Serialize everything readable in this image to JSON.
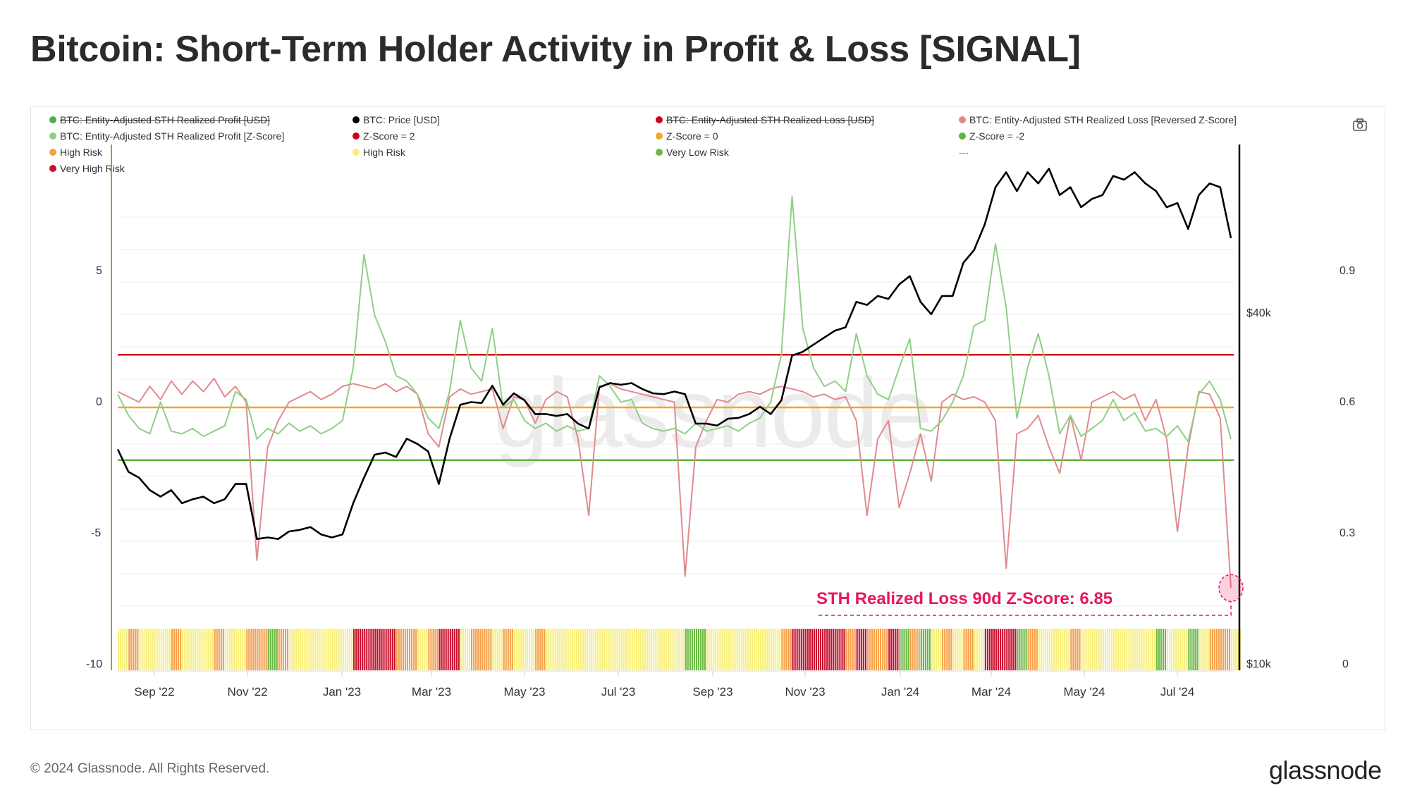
{
  "title": "Bitcoin: Short-Term Holder Activity in Profit & Loss [SIGNAL]",
  "legend": [
    {
      "label": "BTC: Entity-Adjusted STH Realized Profit [USD]",
      "color": "#4caf50",
      "disabled": true
    },
    {
      "label": "BTC: Price [USD]",
      "color": "#000000",
      "disabled": false
    },
    {
      "label": "BTC: Entity-Adjusted STH Realized Loss [USD]",
      "color": "#d0021b",
      "disabled": true
    },
    {
      "label": "BTC: Entity-Adjusted STH Realized Loss [Reversed Z-Score]",
      "color": "#e08a8f",
      "disabled": false
    },
    {
      "label": "BTC: Entity-Adjusted STH Realized Profit [Z-Score]",
      "color": "#8fcf86",
      "disabled": false
    },
    {
      "label": "Z-Score = 2",
      "color": "#d0021b",
      "disabled": false
    },
    {
      "label": "Z-Score = 0",
      "color": "#f5a623",
      "disabled": false
    },
    {
      "label": "Z-Score = -2",
      "color": "#5cb83c",
      "disabled": false
    },
    {
      "label": "High Risk",
      "color": "#f5a04a",
      "disabled": false
    },
    {
      "label": "High Risk",
      "color": "#f8ef7e",
      "disabled": false
    },
    {
      "label": "Very Low Risk",
      "color": "#6bb845",
      "disabled": false
    },
    {
      "label": "---",
      "color": "",
      "disabled": false
    },
    {
      "label": "Very High Risk",
      "color": "#c8102e",
      "disabled": false
    }
  ],
  "annotation": "STH Realized Loss 90d Z-Score: 6.85",
  "watermark": "glassnode",
  "footer": {
    "copyright": "© 2024 Glassnode. All Rights Reserved.",
    "logo": "glassnode"
  },
  "icons": {
    "screenshot": "camera-icon"
  },
  "colors": {
    "profit_z": "#8fcf86",
    "loss_z": "#e08a8f",
    "price": "#000000",
    "z2": "#d0021b",
    "z0": "#f5a623",
    "zm2": "#5cb83c",
    "annotation": "#e8175d"
  },
  "chart_data": {
    "type": "line",
    "title": "Bitcoin: Short-Term Holder Activity in Profit & Loss [SIGNAL]",
    "x_start": "2022-08-08",
    "step_days": 7,
    "x_ticks": [
      "Sep '22",
      "Nov '22",
      "Jan '23",
      "Mar '23",
      "May '23",
      "Jul '23",
      "Sep '23",
      "Nov '23",
      "Jan '24",
      "Mar '24",
      "May '24",
      "Jul '24"
    ],
    "y_left": {
      "ticks": [
        "5",
        "0",
        "-5",
        "-10"
      ],
      "range": [
        -10,
        9.5
      ]
    },
    "y_price": {
      "ticks": [
        "$40k",
        "$10k"
      ],
      "scale": "log"
    },
    "y_right": {
      "ticks": [
        "0.9",
        "0.6",
        "0.3",
        "0"
      ],
      "range": [
        0,
        1
      ]
    },
    "thresholds": [
      {
        "name": "Z-Score = 2",
        "value": 2
      },
      {
        "name": "Z-Score = 0",
        "value": 0
      },
      {
        "name": "Z-Score = -2",
        "value": -2
      }
    ],
    "series": [
      {
        "name": "BTC: Price [USD] (thousands)",
        "axis": "price",
        "values": [
          23.5,
          21.5,
          21,
          20,
          19.5,
          20,
          19,
          19.3,
          19.5,
          19,
          19.3,
          20.5,
          20.5,
          16.5,
          16.6,
          16.5,
          17,
          17.1,
          17.3,
          16.8,
          16.6,
          16.8,
          19,
          21,
          23,
          23.2,
          22.8,
          24.5,
          24,
          23.3,
          20.5,
          24.5,
          28,
          28.3,
          28.2,
          30.2,
          28,
          29.3,
          28.5,
          27,
          27,
          26.8,
          27,
          26,
          25.5,
          30,
          30.5,
          30.3,
          30.5,
          29.8,
          29.3,
          29.2,
          29.5,
          29.2,
          26,
          26,
          25.8,
          26.5,
          26.6,
          27,
          27.8,
          27,
          28.5,
          34,
          34.5,
          35.5,
          36.5,
          37.5,
          38,
          42,
          41.5,
          43,
          42.5,
          45,
          46.5,
          42,
          40,
          43,
          43,
          49,
          51.5,
          57,
          66,
          70,
          65,
          70,
          67,
          71,
          64,
          66,
          61,
          63,
          64,
          69,
          68,
          70,
          67,
          65,
          61,
          62,
          56,
          64,
          67,
          66,
          54
        ]
      },
      {
        "name": "BTC: Entity-Adjusted STH Realized Profit [Z-Score]",
        "axis": "z",
        "values": [
          0.5,
          -0.3,
          -0.8,
          -1,
          0.2,
          -0.9,
          -1,
          -0.8,
          -1.1,
          -0.9,
          -0.7,
          0.6,
          0.3,
          -1.2,
          -0.8,
          -1,
          -0.6,
          -0.9,
          -0.7,
          -1,
          -0.8,
          -0.5,
          1.5,
          5.8,
          3.5,
          2.5,
          1.2,
          1,
          0.5,
          -0.4,
          -0.8,
          0.6,
          3.3,
          1.5,
          1,
          3.0,
          0,
          0.3,
          -0.5,
          -0.8,
          -0.6,
          -0.9,
          -0.7,
          -0.9,
          -0.8,
          1.2,
          0.8,
          0.2,
          0.3,
          -0.6,
          -0.8,
          -0.9,
          -0.8,
          -1,
          -0.6,
          -0.9,
          -0.8,
          -0.7,
          -0.9,
          -0.6,
          -0.4,
          0.2,
          2.0,
          8.0,
          3.0,
          1.5,
          0.8,
          1.0,
          0.6,
          2.8,
          1.2,
          0.5,
          0.3,
          1.5,
          2.6,
          -0.8,
          -0.9,
          -0.5,
          0.2,
          1.2,
          3.1,
          3.3,
          6.2,
          3.8,
          -0.4,
          1.5,
          2.8,
          1.2,
          -1.0,
          -0.3,
          -1.1,
          -0.8,
          -0.5,
          0.3,
          -0.5,
          -0.2,
          -0.9,
          -0.8,
          -1.1,
          -0.7,
          -1.3,
          0.5,
          1.0,
          0.3,
          -1.2
        ]
      },
      {
        "name": "BTC: Entity-Adjusted STH Realized Loss [Reversed Z-Score]",
        "axis": "z",
        "values": [
          0.6,
          0.4,
          0.2,
          0.8,
          0.3,
          1.0,
          0.5,
          1.0,
          0.6,
          1.1,
          0.4,
          0.8,
          0.2,
          -5.8,
          -1.5,
          -0.5,
          0.2,
          0.4,
          0.6,
          0.3,
          0.5,
          0.8,
          0.9,
          0.8,
          0.7,
          0.9,
          0.6,
          0.8,
          0.5,
          -1.0,
          -1.5,
          0.4,
          0.7,
          0.5,
          0.6,
          0.7,
          -0.8,
          0.4,
          0.3,
          -0.6,
          0.3,
          0.6,
          0.4,
          -1.2,
          -4.1,
          0.8,
          0.9,
          0.7,
          0.6,
          0.5,
          0.4,
          0.3,
          0.2,
          -6.4,
          -1.5,
          -0.5,
          0.3,
          0.2,
          0.5,
          0.6,
          0.5,
          0.7,
          0.8,
          0.7,
          0.6,
          0.4,
          0.5,
          0.3,
          0.4,
          -0.5,
          -4.1,
          -1.2,
          -0.5,
          -3.8,
          -2.5,
          -1.0,
          -2.8,
          0.2,
          0.5,
          0.3,
          0.4,
          0.2,
          -0.5,
          -6.1,
          -1.0,
          -0.8,
          -0.3,
          -1.5,
          -2.5,
          -0.3,
          -2.0,
          0.2,
          0.4,
          0.6,
          0.3,
          0.5,
          -0.5,
          0.3,
          -1.2,
          -4.7,
          -1.5,
          0.6,
          0.5,
          -0.4,
          -6.85
        ]
      }
    ],
    "risk_levels": {
      "codes": "YOYYYOYYYOYYOOGOYYYYYYRRRROOYORRYOOYOYYOYYYYYYYYYYYYYGGYYYYYYYORRRRRORooRGOGYOYOYRRRGOYYYOYYYYYYYGYYGYOOY",
      "legend": {
        "R": "Very High Risk",
        "O": "High Risk",
        "Y": "High Risk",
        "G": "Very Low Risk"
      },
      "colors": {
        "R": "#c8102e",
        "O": "#f5a04a",
        "Y": "#f8ef7e",
        "G": "#6bb845"
      }
    },
    "annotation": {
      "label": "STH Realized Loss 90d Z-Score: 6.85",
      "value": -6.85,
      "date_index": 104
    }
  }
}
